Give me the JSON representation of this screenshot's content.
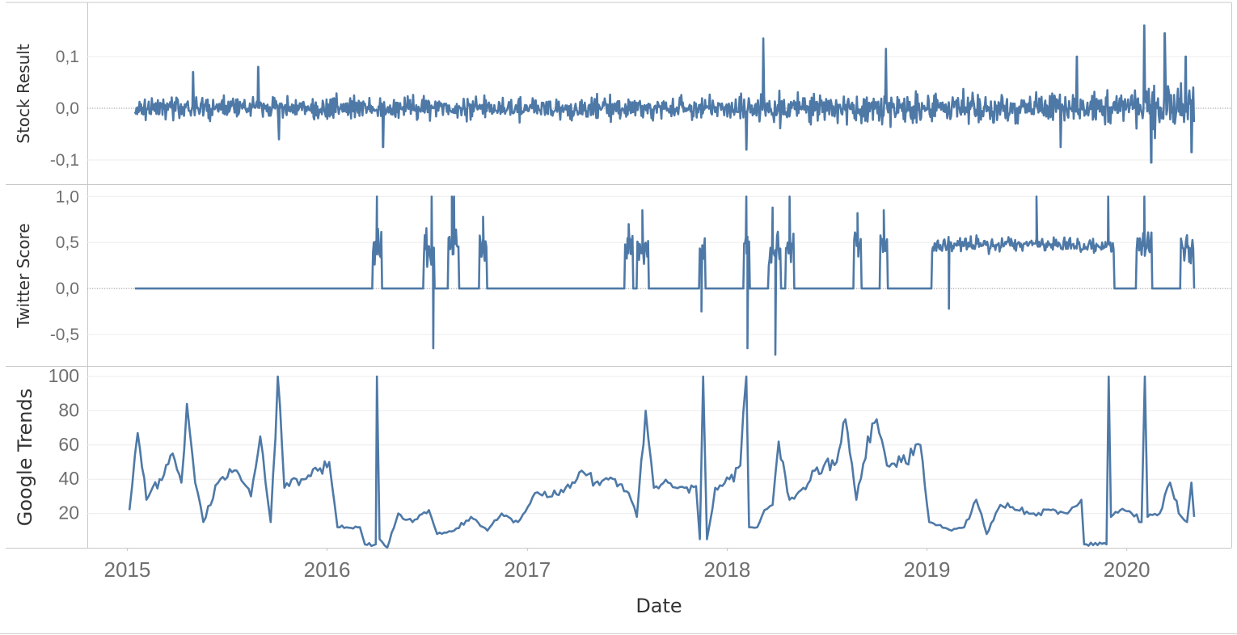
{
  "chart_data": {
    "type": "line",
    "xlabel": "Date",
    "x_ticks": [
      "2015",
      "2016",
      "2017",
      "2018",
      "2019",
      "2020"
    ],
    "x_range": [
      "2014-10-20",
      "2020-07-10"
    ],
    "line_color": "#4e79a7",
    "grid": true,
    "panels": [
      {
        "ylabel": "Stock Result",
        "ylim": [
          -0.125,
          0.175
        ],
        "y_ticks": [
          {
            "value": 0.1,
            "label": "0,1"
          },
          {
            "value": 0.0,
            "label": "0,0"
          },
          {
            "value": -0.1,
            "label": "-0,1"
          }
        ],
        "zero_line": true,
        "spikes": [
          {
            "date": "2015-05-01",
            "value": 0.07
          },
          {
            "date": "2015-08-28",
            "value": 0.08
          },
          {
            "date": "2015-10-05",
            "value": -0.06
          },
          {
            "date": "2016-04-12",
            "value": -0.075
          },
          {
            "date": "2018-02-05",
            "value": -0.08
          },
          {
            "date": "2018-03-08",
            "value": 0.135
          },
          {
            "date": "2018-10-18",
            "value": 0.115
          },
          {
            "date": "2019-09-02",
            "value": -0.075
          },
          {
            "date": "2019-10-02",
            "value": 0.1
          },
          {
            "date": "2020-02-02",
            "value": 0.16
          },
          {
            "date": "2020-02-15",
            "value": -0.105
          },
          {
            "date": "2020-03-10",
            "value": 0.145
          },
          {
            "date": "2020-04-18",
            "value": 0.1
          },
          {
            "date": "2020-04-28",
            "value": -0.085
          }
        ]
      },
      {
        "ylabel": "Twitter Score",
        "ylim": [
          -0.72,
          1.02
        ],
        "y_ticks": [
          {
            "value": 1.0,
            "label": "1,0"
          },
          {
            "value": 0.5,
            "label": "0,5"
          },
          {
            "value": 0.0,
            "label": "0,0"
          },
          {
            "value": -0.5,
            "label": "-0,5"
          }
        ],
        "zero_line": true,
        "active_periods": [
          [
            "2016-03-25",
            "2016-04-10"
          ],
          [
            "2016-06-25",
            "2016-07-15"
          ],
          [
            "2016-08-10",
            "2016-08-28"
          ],
          [
            "2016-10-05",
            "2016-10-18"
          ],
          [
            "2017-06-28",
            "2017-07-12"
          ],
          [
            "2017-07-20",
            "2017-08-10"
          ],
          [
            "2017-11-12",
            "2017-11-22"
          ],
          [
            "2018-02-01",
            "2018-02-10"
          ],
          [
            "2018-03-18",
            "2018-04-08"
          ],
          [
            "2018-04-18",
            "2018-05-02"
          ],
          [
            "2018-08-20",
            "2018-09-02"
          ],
          [
            "2018-10-08",
            "2018-10-20"
          ],
          [
            "2019-01-10",
            "2019-12-08"
          ],
          [
            "2020-01-18",
            "2020-02-15"
          ],
          [
            "2020-04-08",
            "2020-05-02"
          ]
        ],
        "spikes": [
          {
            "date": "2016-04-01",
            "value": 1.0
          },
          {
            "date": "2016-07-10",
            "value": 1.0
          },
          {
            "date": "2016-07-13",
            "value": -0.65
          },
          {
            "date": "2016-08-16",
            "value": 1.0
          },
          {
            "date": "2016-08-20",
            "value": 1.0
          },
          {
            "date": "2016-10-12",
            "value": 0.78
          },
          {
            "date": "2017-07-05",
            "value": 0.7
          },
          {
            "date": "2017-07-30",
            "value": 0.85
          },
          {
            "date": "2017-11-15",
            "value": -0.25
          },
          {
            "date": "2018-02-05",
            "value": 1.0
          },
          {
            "date": "2018-02-07",
            "value": -0.65
          },
          {
            "date": "2018-03-25",
            "value": 0.88
          },
          {
            "date": "2018-03-30",
            "value": -0.72
          },
          {
            "date": "2018-04-25",
            "value": 1.0
          },
          {
            "date": "2018-08-27",
            "value": 0.82
          },
          {
            "date": "2018-10-14",
            "value": 0.85
          },
          {
            "date": "2019-02-10",
            "value": -0.22
          },
          {
            "date": "2019-07-20",
            "value": 1.0
          },
          {
            "date": "2019-11-28",
            "value": 1.0
          },
          {
            "date": "2020-02-02",
            "value": 1.0
          },
          {
            "date": "2020-04-20",
            "value": 0.58
          }
        ]
      },
      {
        "ylabel": "Google Trends",
        "ylim": [
          0,
          100
        ],
        "y_ticks": [
          {
            "value": 100,
            "label": "100"
          },
          {
            "value": 80,
            "label": "80"
          },
          {
            "value": 60,
            "label": "60"
          },
          {
            "value": 40,
            "label": "40"
          },
          {
            "value": 20,
            "label": "20"
          }
        ],
        "zero_line": false,
        "points": [
          [
            "2015-01-05",
            22
          ],
          [
            "2015-01-20",
            67
          ],
          [
            "2015-02-05",
            28
          ],
          [
            "2015-03-01",
            40
          ],
          [
            "2015-03-25",
            55
          ],
          [
            "2015-04-10",
            38
          ],
          [
            "2015-04-20",
            84
          ],
          [
            "2015-05-05",
            38
          ],
          [
            "2015-05-20",
            15
          ],
          [
            "2015-06-20",
            40
          ],
          [
            "2015-07-20",
            45
          ],
          [
            "2015-08-15",
            30
          ],
          [
            "2015-09-01",
            65
          ],
          [
            "2015-09-20",
            15
          ],
          [
            "2015-10-03",
            100
          ],
          [
            "2015-10-15",
            35
          ],
          [
            "2015-11-15",
            40
          ],
          [
            "2015-12-15",
            45
          ],
          [
            "2016-01-05",
            50
          ],
          [
            "2016-01-20",
            12
          ],
          [
            "2016-03-01",
            12
          ],
          [
            "2016-03-10",
            2
          ],
          [
            "2016-03-30",
            2
          ],
          [
            "2016-04-01",
            100
          ],
          [
            "2016-04-06",
            5
          ],
          [
            "2016-04-20",
            0
          ],
          [
            "2016-05-10",
            20
          ],
          [
            "2016-06-05",
            15
          ],
          [
            "2016-07-05",
            22
          ],
          [
            "2016-07-20",
            8
          ],
          [
            "2016-08-20",
            10
          ],
          [
            "2016-09-20",
            18
          ],
          [
            "2016-10-20",
            10
          ],
          [
            "2016-11-15",
            20
          ],
          [
            "2016-12-15",
            15
          ],
          [
            "2017-01-15",
            32
          ],
          [
            "2017-02-15",
            30
          ],
          [
            "2017-03-20",
            35
          ],
          [
            "2017-04-10",
            45
          ],
          [
            "2017-05-05",
            38
          ],
          [
            "2017-06-10",
            40
          ],
          [
            "2017-07-05",
            32
          ],
          [
            "2017-07-20",
            18
          ],
          [
            "2017-08-05",
            80
          ],
          [
            "2017-08-20",
            35
          ],
          [
            "2017-09-15",
            38
          ],
          [
            "2017-10-15",
            35
          ],
          [
            "2017-11-05",
            36
          ],
          [
            "2017-11-12",
            5
          ],
          [
            "2017-11-18",
            100
          ],
          [
            "2017-11-25",
            5
          ],
          [
            "2017-12-10",
            35
          ],
          [
            "2018-01-05",
            40
          ],
          [
            "2018-01-25",
            48
          ],
          [
            "2018-02-05",
            100
          ],
          [
            "2018-02-10",
            12
          ],
          [
            "2018-02-25",
            12
          ],
          [
            "2018-03-10",
            22
          ],
          [
            "2018-03-25",
            25
          ],
          [
            "2018-04-05",
            62
          ],
          [
            "2018-04-25",
            28
          ],
          [
            "2018-05-20",
            35
          ],
          [
            "2018-06-10",
            45
          ],
          [
            "2018-07-20",
            50
          ],
          [
            "2018-08-05",
            75
          ],
          [
            "2018-08-25",
            28
          ],
          [
            "2018-09-15",
            65
          ],
          [
            "2018-10-01",
            75
          ],
          [
            "2018-10-20",
            48
          ],
          [
            "2018-11-15",
            50
          ],
          [
            "2018-12-20",
            60
          ],
          [
            "2019-01-05",
            15
          ],
          [
            "2019-02-15",
            10
          ],
          [
            "2019-03-10",
            12
          ],
          [
            "2019-04-01",
            28
          ],
          [
            "2019-04-20",
            8
          ],
          [
            "2019-05-15",
            25
          ],
          [
            "2019-06-15",
            22
          ],
          [
            "2019-07-15",
            20
          ],
          [
            "2019-08-15",
            22
          ],
          [
            "2019-09-15",
            20
          ],
          [
            "2019-10-10",
            28
          ],
          [
            "2019-10-15",
            2
          ],
          [
            "2019-11-25",
            2
          ],
          [
            "2019-11-29",
            100
          ],
          [
            "2019-12-03",
            18
          ],
          [
            "2019-12-20",
            22
          ],
          [
            "2020-01-10",
            20
          ],
          [
            "2020-01-28",
            15
          ],
          [
            "2020-02-03",
            100
          ],
          [
            "2020-02-08",
            18
          ],
          [
            "2020-03-01",
            20
          ],
          [
            "2020-03-20",
            38
          ],
          [
            "2020-04-05",
            20
          ],
          [
            "2020-04-20",
            15
          ],
          [
            "2020-04-28",
            38
          ],
          [
            "2020-05-03",
            18
          ]
        ]
      }
    ]
  }
}
